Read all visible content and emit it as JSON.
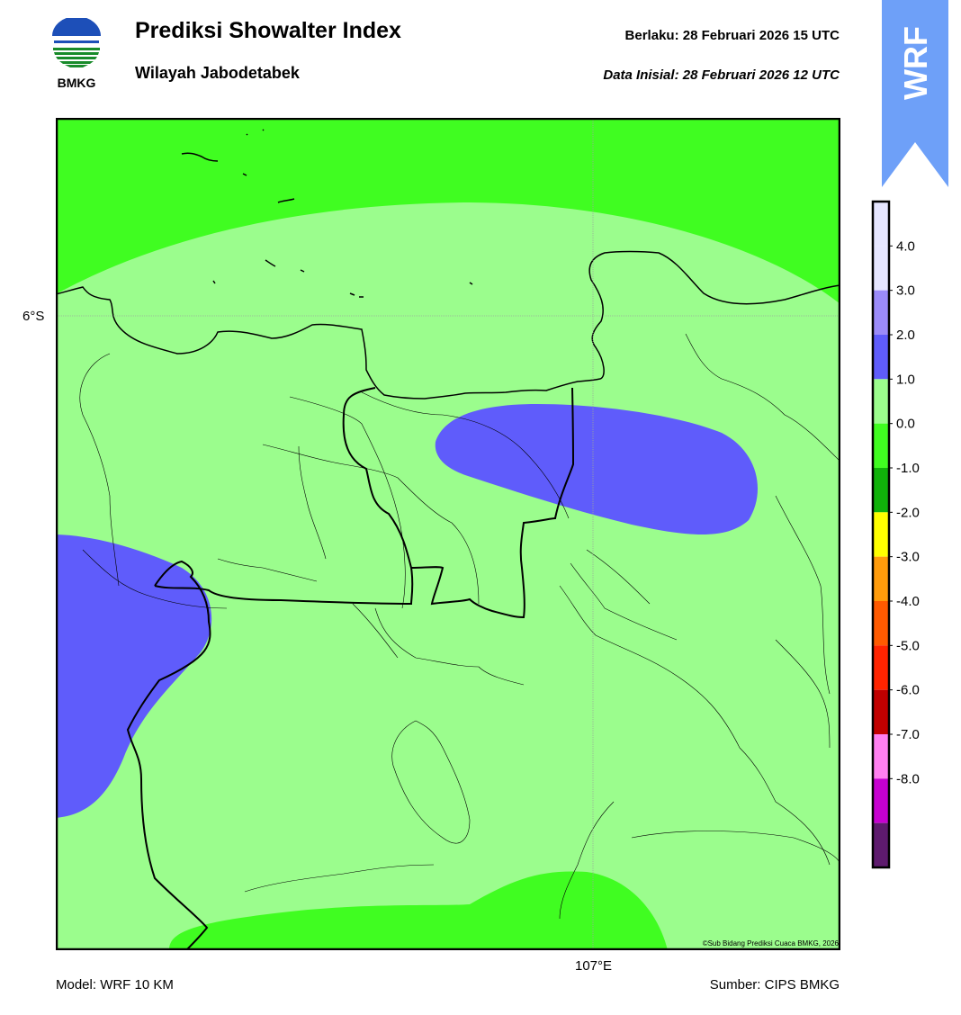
{
  "header": {
    "logo_text": "BMKG",
    "title": "Prediksi Showalter Index",
    "subtitle": "Wilayah Jabodetabek",
    "valid": "Berlaku:  28 Februari 2026 15 UTC",
    "init": "Data Inisial:  28 Februari 2026 12 UTC",
    "badge": "WRF"
  },
  "map": {
    "lat_label": "6°S",
    "lon_label": "107°E",
    "copyright": "©Sub Bidang Prediksi Cuaca BMKG, 2026",
    "colors": {
      "frame": "#000000",
      "gridline": "#aaaaaa"
    }
  },
  "footer": {
    "model": "Model: WRF 10 KM",
    "source": "Sumber: CIPS BMKG"
  },
  "colorbar": {
    "ticks": [
      "4.0",
      "3.0",
      "2.0",
      "1.0",
      "0.0",
      "-1.0",
      "-2.0",
      "-3.0",
      "-4.0",
      "-5.0",
      "-6.0",
      "-7.0",
      "-8.0"
    ],
    "tick_values": [
      4,
      3,
      2,
      1,
      0,
      -1,
      -2,
      -3,
      -4,
      -5,
      -6,
      -7,
      -8
    ],
    "bands": [
      {
        "from": 4,
        "to": 5,
        "color": "#e6e6ff"
      },
      {
        "from": 3,
        "to": 4,
        "color": "#e6e6ff"
      },
      {
        "from": 2,
        "to": 3,
        "color": "#9b8bf9"
      },
      {
        "from": 1,
        "to": 2,
        "color": "#5f5cfb"
      },
      {
        "from": 0,
        "to": 1,
        "color": "#9bfd8d"
      },
      {
        "from": -1,
        "to": 0,
        "color": "#40fd21"
      },
      {
        "from": -2,
        "to": -1,
        "color": "#10b20a"
      },
      {
        "from": -3,
        "to": -2,
        "color": "#ffff00"
      },
      {
        "from": -4,
        "to": -3,
        "color": "#ff9b0b"
      },
      {
        "from": -5,
        "to": -4,
        "color": "#ff5a00"
      },
      {
        "from": -6,
        "to": -5,
        "color": "#ff2400"
      },
      {
        "from": -7,
        "to": -6,
        "color": "#c00000"
      },
      {
        "from": -8,
        "to": -7,
        "color": "#ff7ff0"
      },
      {
        "from": -9,
        "to": -8,
        "color": "#c600d0"
      },
      {
        "from": -10,
        "to": -9,
        "color": "#5e1a6e"
      }
    ]
  }
}
